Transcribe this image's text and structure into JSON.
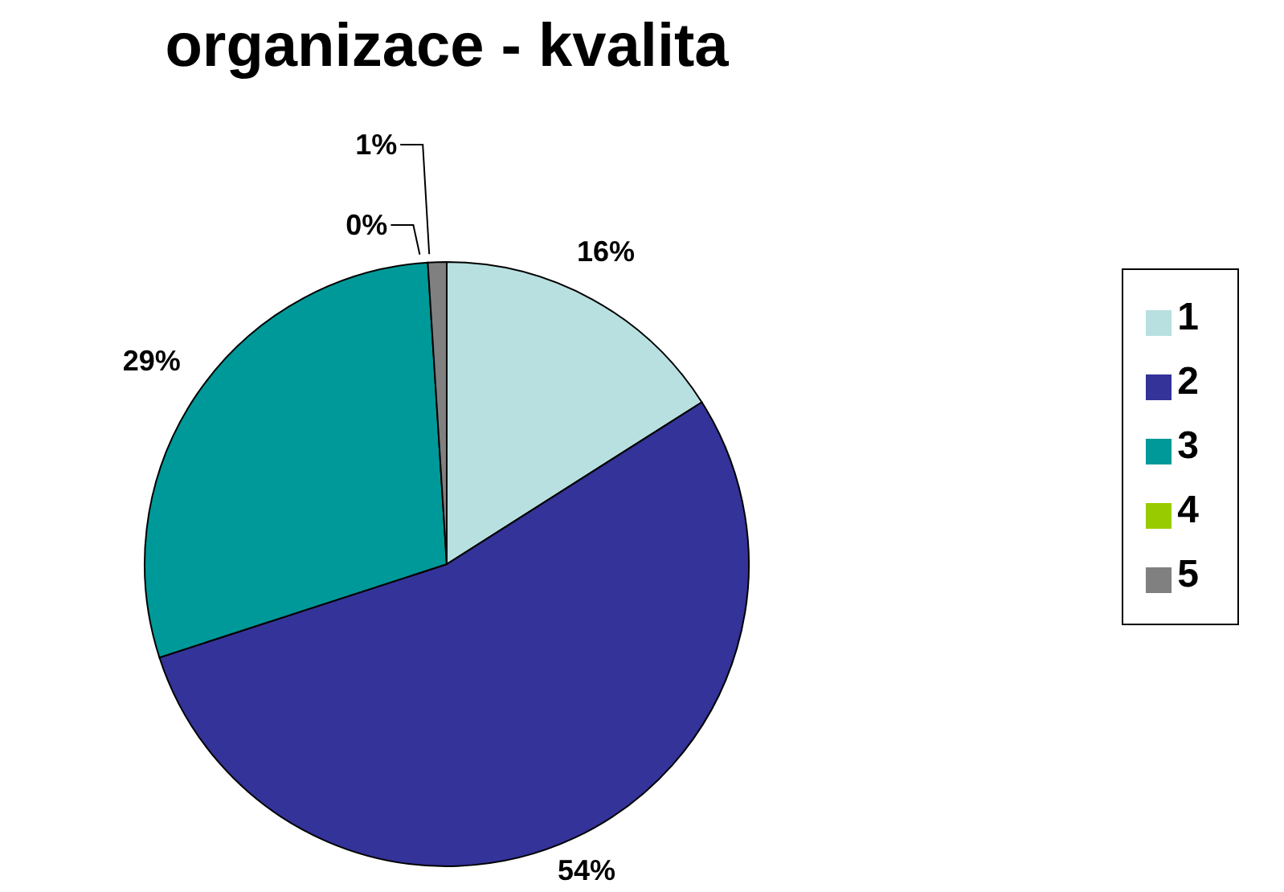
{
  "chart_data": {
    "type": "pie",
    "title": "organizace - kvalita",
    "categories": [
      "1",
      "2",
      "3",
      "4",
      "5"
    ],
    "values": [
      16,
      54,
      29,
      0,
      1
    ],
    "value_labels": [
      "16%",
      "54%",
      "29%",
      "0%",
      "1%"
    ],
    "colors": [
      "#b8e0e0",
      "#333399",
      "#009999",
      "#99cc00",
      "#808080"
    ],
    "legend": "right"
  }
}
